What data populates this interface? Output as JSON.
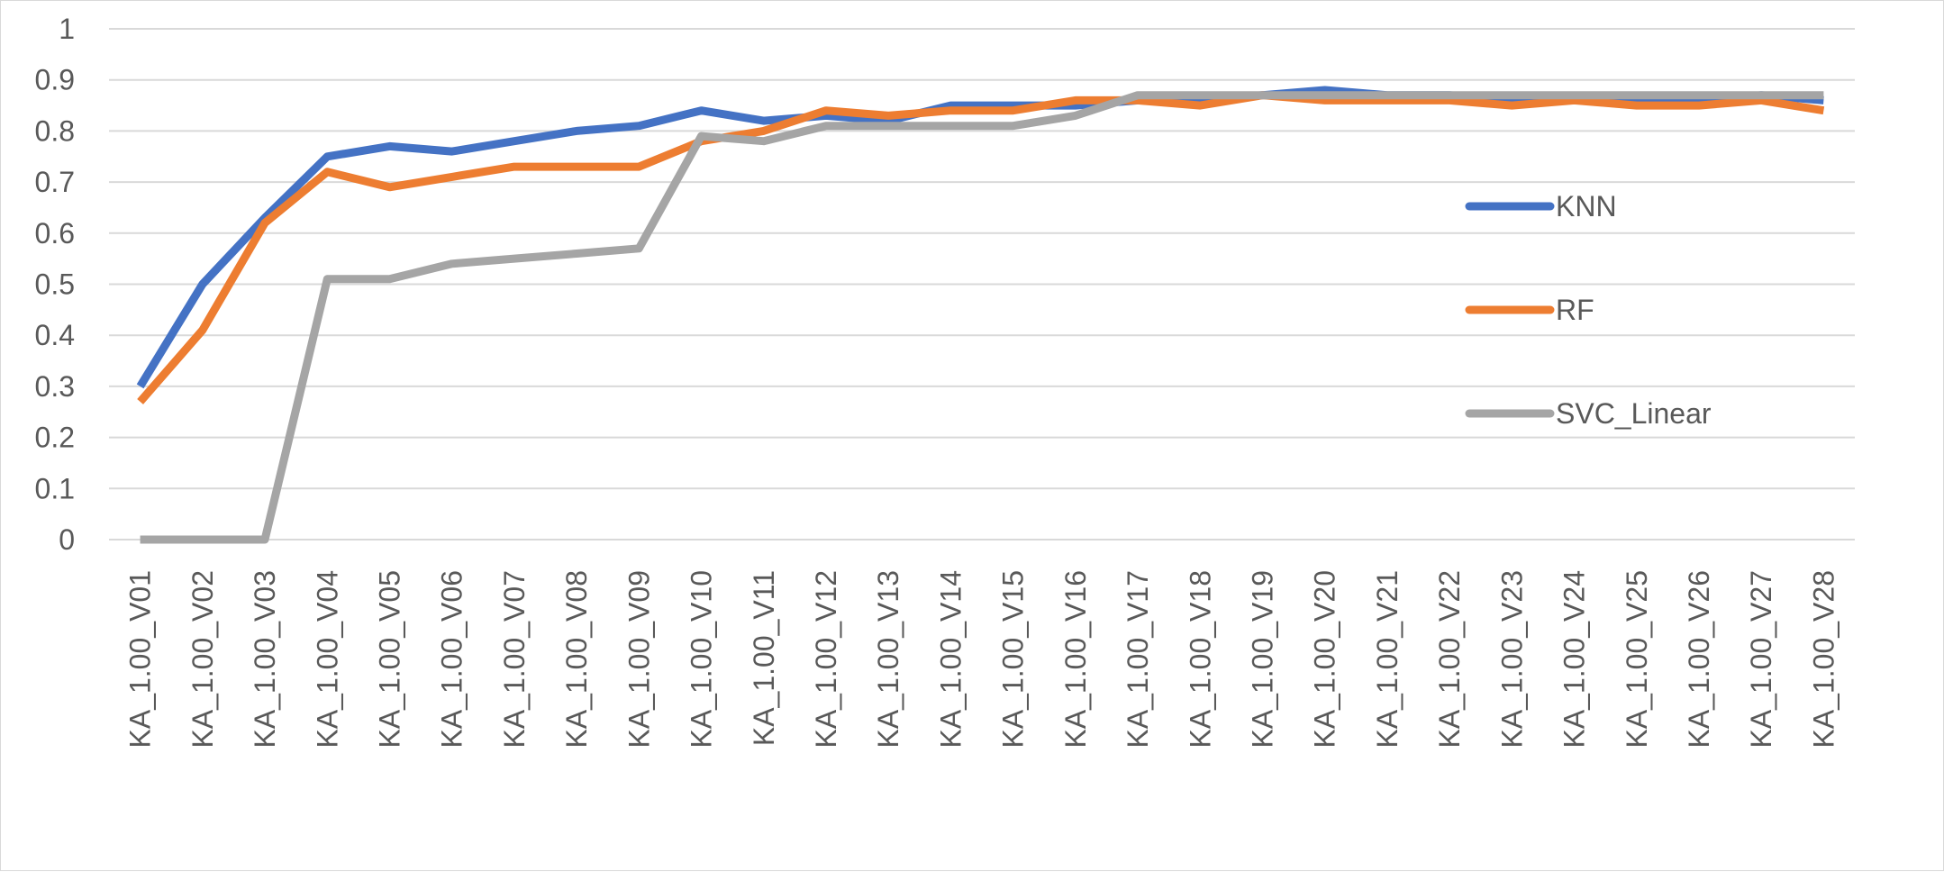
{
  "chart_data": {
    "type": "line",
    "title": "",
    "xlabel": "",
    "ylabel": "",
    "ylim": [
      0,
      1
    ],
    "yticks": [
      "0",
      "0.1",
      "0.2",
      "0.3",
      "0.4",
      "0.5",
      "0.6",
      "0.7",
      "0.8",
      "0.9",
      "1"
    ],
    "grid": true,
    "legend_position": "right",
    "categories": [
      "KA_1.00_V01",
      "KA_1.00_V02",
      "KA_1.00_V03",
      "KA_1.00_V04",
      "KA_1.00_V05",
      "KA_1.00_V06",
      "KA_1.00_V07",
      "KA_1.00_V08",
      "KA_1.00_V09",
      "KA_1.00_V10",
      "KA_1.00_V11",
      "KA_1.00_V12",
      "KA_1.00_V13",
      "KA_1.00_V14",
      "KA_1.00_V15",
      "KA_1.00_V16",
      "KA_1.00_V17",
      "KA_1.00_V18",
      "KA_1.00_V19",
      "KA_1.00_V20",
      "KA_1.00_V21",
      "KA_1.00_V22",
      "KA_1.00_V23",
      "KA_1.00_V24",
      "KA_1.00_V25",
      "KA_1.00_V26",
      "KA_1.00_V27",
      "KA_1.00_V28"
    ],
    "series": [
      {
        "name": "KNN",
        "color": "#4472c4",
        "values": [
          0.3,
          0.5,
          0.63,
          0.75,
          0.77,
          0.76,
          0.78,
          0.8,
          0.81,
          0.84,
          0.82,
          0.83,
          0.82,
          0.85,
          0.85,
          0.85,
          0.86,
          0.86,
          0.87,
          0.88,
          0.87,
          0.87,
          0.86,
          0.86,
          0.86,
          0.86,
          0.87,
          0.86
        ]
      },
      {
        "name": "RF",
        "color": "#ed7d31",
        "values": [
          0.27,
          0.41,
          0.62,
          0.72,
          0.69,
          0.71,
          0.73,
          0.73,
          0.73,
          0.78,
          0.8,
          0.84,
          0.83,
          0.84,
          0.84,
          0.86,
          0.86,
          0.85,
          0.87,
          0.86,
          0.86,
          0.86,
          0.85,
          0.86,
          0.85,
          0.85,
          0.86,
          0.84
        ]
      },
      {
        "name": "SVC_Linear",
        "color": "#a5a5a5",
        "values": [
          0.0,
          0.0,
          0.0,
          0.51,
          0.51,
          0.54,
          0.55,
          0.56,
          0.57,
          0.79,
          0.78,
          0.81,
          0.81,
          0.81,
          0.81,
          0.83,
          0.87,
          0.87,
          0.87,
          0.87,
          0.87,
          0.87,
          0.87,
          0.87,
          0.87,
          0.87,
          0.87,
          0.87
        ]
      }
    ]
  }
}
